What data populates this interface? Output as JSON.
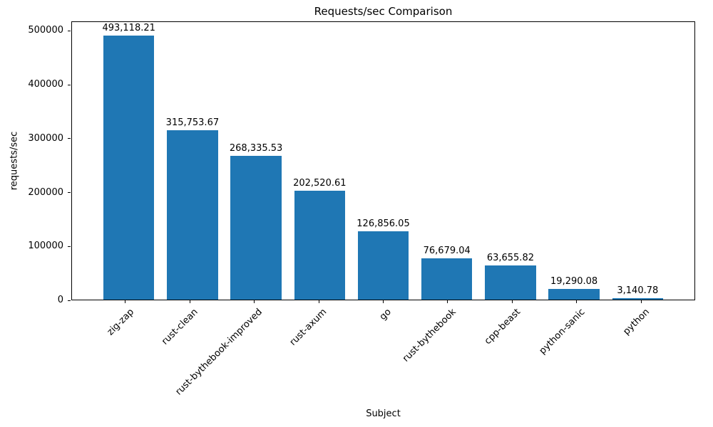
{
  "chart_data": {
    "type": "bar",
    "title": "Requests/sec Comparison",
    "xlabel": "Subject",
    "ylabel": "requests/sec",
    "categories": [
      "zig-zap",
      "rust-clean",
      "rust-bythebook-improved",
      "rust-axum",
      "go",
      "rust-bythebook",
      "cpp-beast",
      "python-sanic",
      "python"
    ],
    "values": [
      493118.21,
      315753.67,
      268335.53,
      202520.61,
      126856.05,
      76679.04,
      63655.82,
      19290.08,
      3140.78
    ],
    "value_labels": [
      "493,118.21",
      "315,753.67",
      "268,335.53",
      "202,520.61",
      "126,856.05",
      "76,679.04",
      "63,655.82",
      "19,290.08",
      "3,140.78"
    ],
    "ylim": [
      0,
      500000
    ],
    "yticks": [
      0,
      100000,
      200000,
      300000,
      400000,
      500000
    ],
    "ytick_labels": [
      "0",
      "100000",
      "200000",
      "300000",
      "400000",
      "500000"
    ],
    "bar_color": "#1f77b4",
    "grid": false,
    "legend": "none"
  }
}
